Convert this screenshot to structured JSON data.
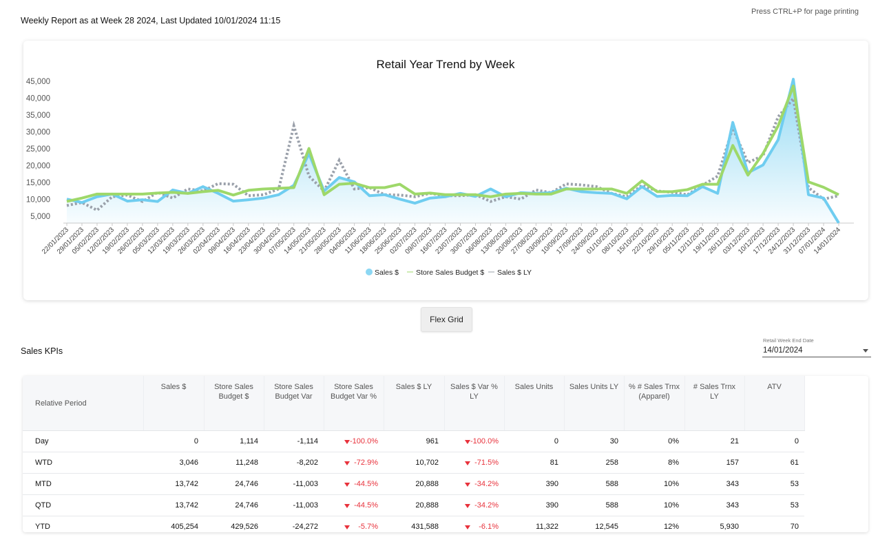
{
  "header": {
    "report_title": "Weekly Report as at Week 28 2024, Last Updated 10/01/2024 11:15",
    "print_hint": "Press CTRL+P for page printing"
  },
  "flex_grid_button": "Flex Grid",
  "kpi_section": {
    "title": "Sales KPIs",
    "date_filter": {
      "label": "Retail Week End Date",
      "value": "14/01/2024"
    },
    "columns": [
      "Relative Period",
      "Sales $",
      "Store Sales Budget $",
      "Store Sales Budget Var",
      "Store Sales Budget Var %",
      "Sales $ LY",
      "Sales $ Var % LY",
      "Sales Units",
      "Sales Units LY",
      "% # Sales Trnx (Apparel)",
      "# Sales Trnx LY",
      "ATV"
    ],
    "rows": [
      [
        "Day",
        "0",
        "1,114",
        "-1,114",
        "-100.0%",
        "961",
        "-100.0%",
        "0",
        "30",
        "0%",
        "21",
        "0"
      ],
      [
        "WTD",
        "3,046",
        "11,248",
        "-8,202",
        "-72.9%",
        "10,702",
        "-71.5%",
        "81",
        "258",
        "8%",
        "157",
        "61"
      ],
      [
        "MTD",
        "13,742",
        "24,746",
        "-11,003",
        "-44.5%",
        "20,888",
        "-34.2%",
        "390",
        "588",
        "10%",
        "343",
        "53"
      ],
      [
        "QTD",
        "13,742",
        "24,746",
        "-11,003",
        "-44.5%",
        "20,888",
        "-34.2%",
        "390",
        "588",
        "10%",
        "343",
        "53"
      ],
      [
        "YTD",
        "405,254",
        "429,526",
        "-24,272",
        "-5.7%",
        "431,588",
        "-6.1%",
        "11,322",
        "12,545",
        "12%",
        "5,930",
        "70"
      ]
    ],
    "negative_color": "#e8313b"
  },
  "chart_data": {
    "type": "line",
    "title": "Retail Year Trend by Week",
    "xlabel": "",
    "ylabel": "",
    "ylim": [
      3000,
      46000
    ],
    "yticks": [
      5000,
      10000,
      15000,
      20000,
      25000,
      30000,
      35000,
      40000,
      45000
    ],
    "ytick_labels": [
      "5,000",
      "10,000",
      "15,000",
      "20,000",
      "25,000",
      "30,000",
      "35,000",
      "40,000",
      "45,000"
    ],
    "grid": false,
    "legend_position": "bottom",
    "x": [
      "22/01/2023",
      "29/01/2023",
      "05/02/2023",
      "12/02/2023",
      "19/02/2023",
      "26/02/2023",
      "05/03/2023",
      "12/03/2023",
      "19/03/2023",
      "26/03/2023",
      "02/04/2023",
      "09/04/2023",
      "16/04/2023",
      "23/04/2023",
      "30/04/2023",
      "07/05/2023",
      "14/05/2023",
      "21/05/2023",
      "28/05/2023",
      "04/06/2023",
      "11/06/2023",
      "18/06/2023",
      "25/06/2023",
      "02/07/2023",
      "09/07/2023",
      "16/07/2023",
      "23/07/2023",
      "30/07/2023",
      "06/08/2023",
      "13/08/2023",
      "20/08/2023",
      "27/08/2023",
      "03/09/2023",
      "10/09/2023",
      "17/09/2023",
      "24/09/2023",
      "01/10/2023",
      "08/10/2023",
      "15/10/2023",
      "22/10/2023",
      "29/10/2023",
      "05/11/2023",
      "12/11/2023",
      "19/11/2023",
      "26/11/2023",
      "03/12/2023",
      "10/12/2023",
      "17/12/2023",
      "24/12/2023",
      "31/12/2023",
      "07/01/2024",
      "14/01/2024"
    ],
    "series": [
      {
        "name": "Sales $",
        "style": "area",
        "color": "#6fcdf0",
        "values": [
          10100,
          9100,
          10800,
          11600,
          9500,
          9900,
          9400,
          12800,
          11800,
          13800,
          11800,
          9500,
          9900,
          10400,
          11400,
          14200,
          23600,
          12500,
          16500,
          15200,
          11100,
          11400,
          10100,
          8900,
          10400,
          10800,
          11800,
          10900,
          13100,
          10800,
          12000,
          11800,
          12000,
          13300,
          12300,
          12000,
          11800,
          10200,
          13800,
          10900,
          11200,
          11100,
          13800,
          11800,
          32800,
          17900,
          20200,
          27700,
          45600,
          11400,
          10400,
          3046
        ]
      },
      {
        "name": "Store Sales Budget $",
        "style": "line",
        "color": "#9ed86a",
        "values": [
          9400,
          10400,
          11600,
          11600,
          11600,
          11600,
          11900,
          12100,
          11800,
          12300,
          12700,
          11300,
          12700,
          13100,
          13300,
          13500,
          25100,
          11400,
          14500,
          14800,
          13500,
          13500,
          14500,
          11600,
          11900,
          11400,
          11400,
          11400,
          10800,
          11600,
          11800,
          11600,
          11600,
          13100,
          13100,
          13100,
          13100,
          11800,
          15500,
          12300,
          12300,
          12900,
          14500,
          14500,
          26000,
          17200,
          23600,
          31800,
          43600,
          15200,
          13600,
          11400
        ]
      },
      {
        "name": "Sales $ LY",
        "style": "dotted",
        "color": "#9aa0aa",
        "values": [
          8200,
          9100,
          6800,
          10800,
          11300,
          9400,
          12100,
          10400,
          13100,
          12500,
          14700,
          14500,
          11100,
          11400,
          13100,
          31800,
          16900,
          12500,
          21600,
          13100,
          13500,
          11400,
          11300,
          10800,
          11800,
          11100,
          11100,
          11400,
          9400,
          10800,
          10100,
          12800,
          12000,
          14600,
          14300,
          13800,
          11800,
          10800,
          14200,
          12500,
          12100,
          11400,
          14200,
          16900,
          31100,
          20900,
          23000,
          34500,
          39900,
          13500,
          10100,
          11100
        ]
      }
    ]
  }
}
